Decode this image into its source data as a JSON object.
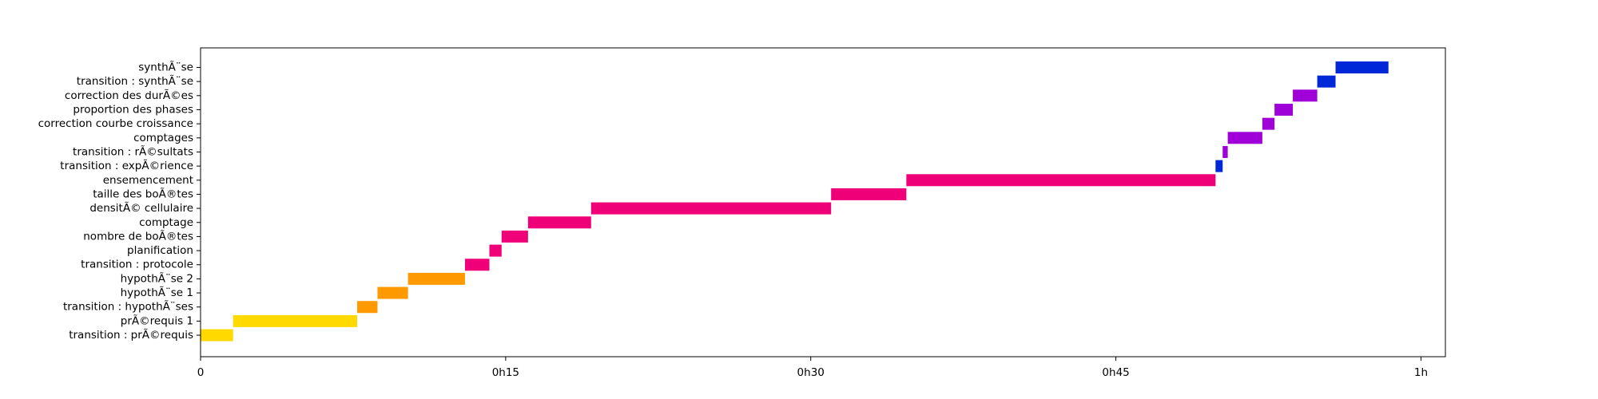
{
  "chart_data": {
    "type": "gantt",
    "title": "",
    "xlabel": "",
    "ylabel": "",
    "x_unit": "minutes",
    "xlim": [
      0,
      61.2
    ],
    "xticks": [
      {
        "value": 0,
        "label": "0"
      },
      {
        "value": 15,
        "label": "0h15"
      },
      {
        "value": 30,
        "label": "0h30"
      },
      {
        "value": 45,
        "label": "0h45"
      },
      {
        "value": 60,
        "label": "1h"
      }
    ],
    "grid": false,
    "colors": {
      "yellow": "#ffd900",
      "orange": "#ff9900",
      "pink": "#f00078",
      "blue": "#0028d8",
      "purple": "#a000d8"
    },
    "tasks": [
      {
        "label": "transition : prÃ©requis",
        "start": 0.0,
        "end": 1.6,
        "color": "#ffd900"
      },
      {
        "label": "prÃ©requis 1",
        "start": 1.6,
        "end": 7.7,
        "color": "#ffd900"
      },
      {
        "label": "transition : hypothÃ¨ses",
        "start": 7.7,
        "end": 8.7,
        "color": "#ff9900"
      },
      {
        "label": "hypothÃ¨se 1",
        "start": 8.7,
        "end": 10.2,
        "color": "#ff9900"
      },
      {
        "label": "hypothÃ¨se 2",
        "start": 10.2,
        "end": 13.0,
        "color": "#ff9900"
      },
      {
        "label": "transition : protocole",
        "start": 13.0,
        "end": 14.2,
        "color": "#f00078"
      },
      {
        "label": "planification",
        "start": 14.2,
        "end": 14.8,
        "color": "#f00078"
      },
      {
        "label": "nombre de boÃ®tes",
        "start": 14.8,
        "end": 16.1,
        "color": "#f00078"
      },
      {
        "label": "comptage",
        "start": 16.1,
        "end": 19.2,
        "color": "#f00078"
      },
      {
        "label": "densitÃ© cellulaire",
        "start": 19.2,
        "end": 31.0,
        "color": "#f00078"
      },
      {
        "label": "taille des boÃ®tes",
        "start": 31.0,
        "end": 34.7,
        "color": "#f00078"
      },
      {
        "label": "ensemencement",
        "start": 34.7,
        "end": 49.9,
        "color": "#f00078"
      },
      {
        "label": "transition : expÃ©rience",
        "start": 49.9,
        "end": 50.25,
        "color": "#0028d8"
      },
      {
        "label": "transition : rÃ©sultats",
        "start": 50.25,
        "end": 50.5,
        "color": "#a000d8"
      },
      {
        "label": "comptages",
        "start": 50.5,
        "end": 52.2,
        "color": "#a000d8"
      },
      {
        "label": "correction courbe croissance",
        "start": 52.2,
        "end": 52.8,
        "color": "#a000d8"
      },
      {
        "label": "proportion des phases",
        "start": 52.8,
        "end": 53.7,
        "color": "#a000d8"
      },
      {
        "label": "correction des durÃ©es",
        "start": 53.7,
        "end": 54.9,
        "color": "#a000d8"
      },
      {
        "label": "transition : synthÃ¨se",
        "start": 54.9,
        "end": 55.8,
        "color": "#0028d8"
      },
      {
        "label": "synthÃ¨se",
        "start": 55.8,
        "end": 58.4,
        "color": "#0028d8"
      }
    ]
  }
}
